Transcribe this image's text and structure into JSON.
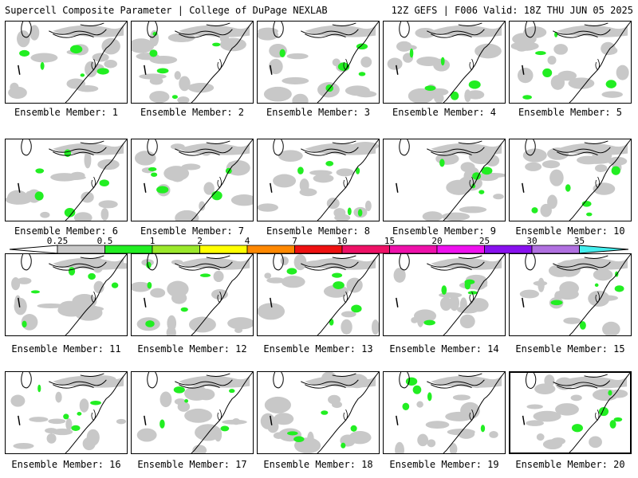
{
  "header": {
    "title": "Supercell Composite Parameter | College of DuPage NEXLAB",
    "valid": "12Z GEFS | F006 Valid: 18Z THU JUN 05 2025"
  },
  "colorbar": {
    "labels": [
      "0.25",
      "0.5",
      "1",
      "2",
      "4",
      "7",
      "10",
      "15",
      "20",
      "25",
      "30",
      "35"
    ],
    "colors": [
      "#c8c8c8",
      "#22ee22",
      "#9be82b",
      "#ffff00",
      "#ff8800",
      "#ee1111",
      "#ee1166",
      "#ee11aa",
      "#ee11ee",
      "#8811ee",
      "#b070e0",
      "#44eeee"
    ]
  },
  "members": [
    {
      "label": "Ensemble Member: 1"
    },
    {
      "label": "Ensemble Member: 2"
    },
    {
      "label": "Ensemble Member: 3"
    },
    {
      "label": "Ensemble Member: 4"
    },
    {
      "label": "Ensemble Member: 5"
    },
    {
      "label": "Ensemble Member: 6"
    },
    {
      "label": "Ensemble Member: 7"
    },
    {
      "label": "Ensemble Member: 8"
    },
    {
      "label": "Ensemble Member: 9"
    },
    {
      "label": "Ensemble Member: 10"
    },
    {
      "label": "Ensemble Member: 11"
    },
    {
      "label": "Ensemble Member: 12"
    },
    {
      "label": "Ensemble Member: 13"
    },
    {
      "label": "Ensemble Member: 14"
    },
    {
      "label": "Ensemble Member: 15"
    },
    {
      "label": "Ensemble Member: 16"
    },
    {
      "label": "Ensemble Member: 17"
    },
    {
      "label": "Ensemble Member: 18"
    },
    {
      "label": "Ensemble Member: 19"
    },
    {
      "label": "Ensemble Member: 20",
      "selected": true
    }
  ]
}
